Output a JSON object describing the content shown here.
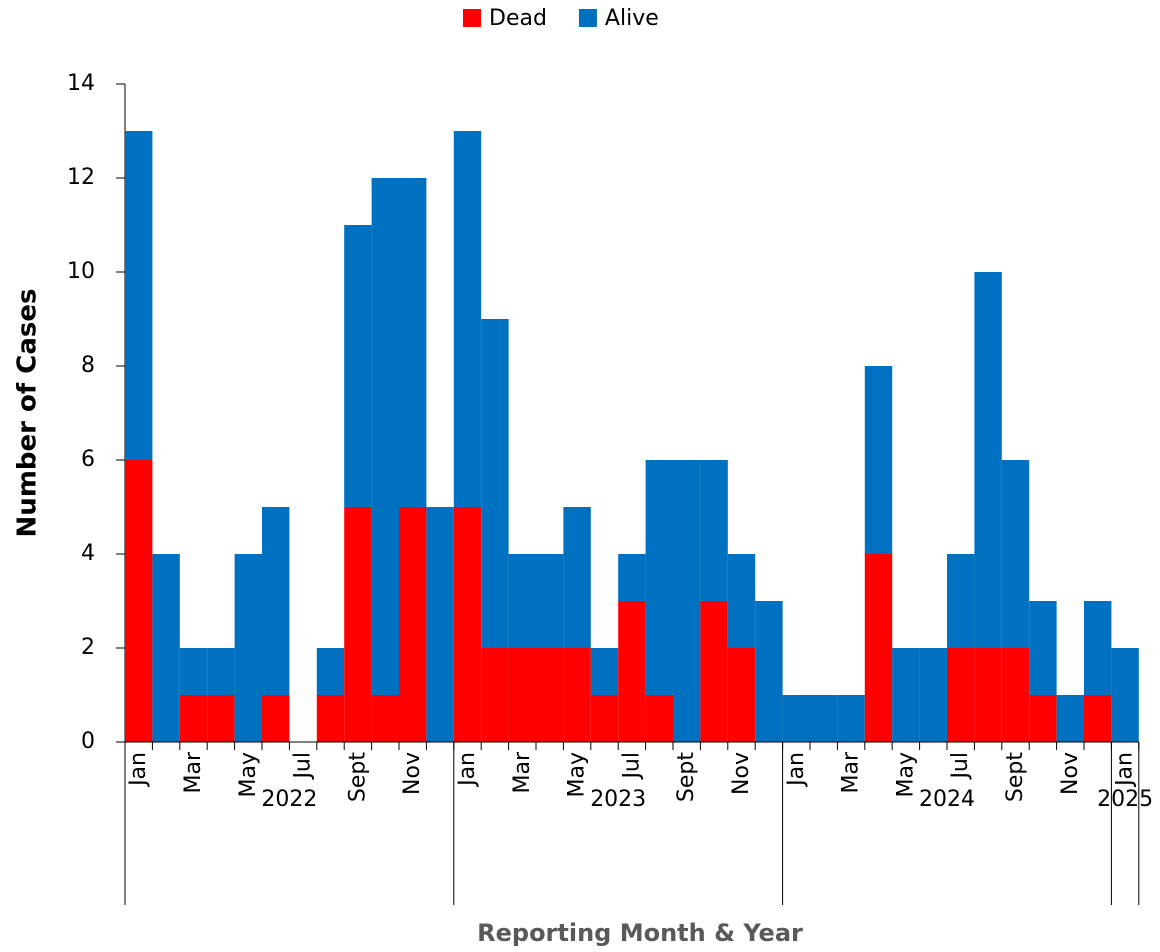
{
  "chart_data": {
    "type": "stacked_bar",
    "x_label": "Reporting Month & Year",
    "y_label": "Number of Cases",
    "categories": [
      "Jan",
      null,
      "Mar",
      null,
      "May",
      null,
      "Jul",
      null,
      "Sept",
      null,
      "Nov",
      null,
      "Jan",
      null,
      "Mar",
      null,
      "May",
      null,
      "Jul",
      null,
      "Sept",
      null,
      "Nov",
      null,
      "Jan",
      null,
      "Mar",
      null,
      "May",
      null,
      "Jul",
      null,
      "Sept",
      null,
      "Nov",
      null,
      "Jan"
    ],
    "year_groups": [
      {
        "label": "2022",
        "span": 12
      },
      {
        "label": "2023",
        "span": 12
      },
      {
        "label": "2024",
        "span": 12
      },
      {
        "label": "2025",
        "span": 1
      }
    ],
    "series": [
      {
        "name": "Dead",
        "color": "#ff0000",
        "values": [
          6,
          0,
          1,
          1,
          0,
          1,
          0,
          1,
          5,
          1,
          5,
          0,
          5,
          2,
          2,
          2,
          2,
          1,
          3,
          1,
          0,
          3,
          2,
          0,
          0,
          0,
          0,
          4,
          0,
          0,
          2,
          2,
          2,
          1,
          0,
          1,
          0
        ]
      },
      {
        "name": "Alive",
        "color": "#0070c0",
        "values": [
          7,
          4,
          1,
          1,
          4,
          4,
          0,
          1,
          6,
          11,
          7,
          5,
          8,
          7,
          2,
          2,
          3,
          1,
          1,
          5,
          6,
          3,
          2,
          3,
          1,
          1,
          1,
          4,
          2,
          2,
          2,
          8,
          4,
          2,
          1,
          2,
          2
        ]
      }
    ],
    "ylim": [
      0,
      14
    ],
    "yticks": [
      0,
      2,
      4,
      6,
      8,
      10,
      12,
      14
    ],
    "legend": "top"
  }
}
